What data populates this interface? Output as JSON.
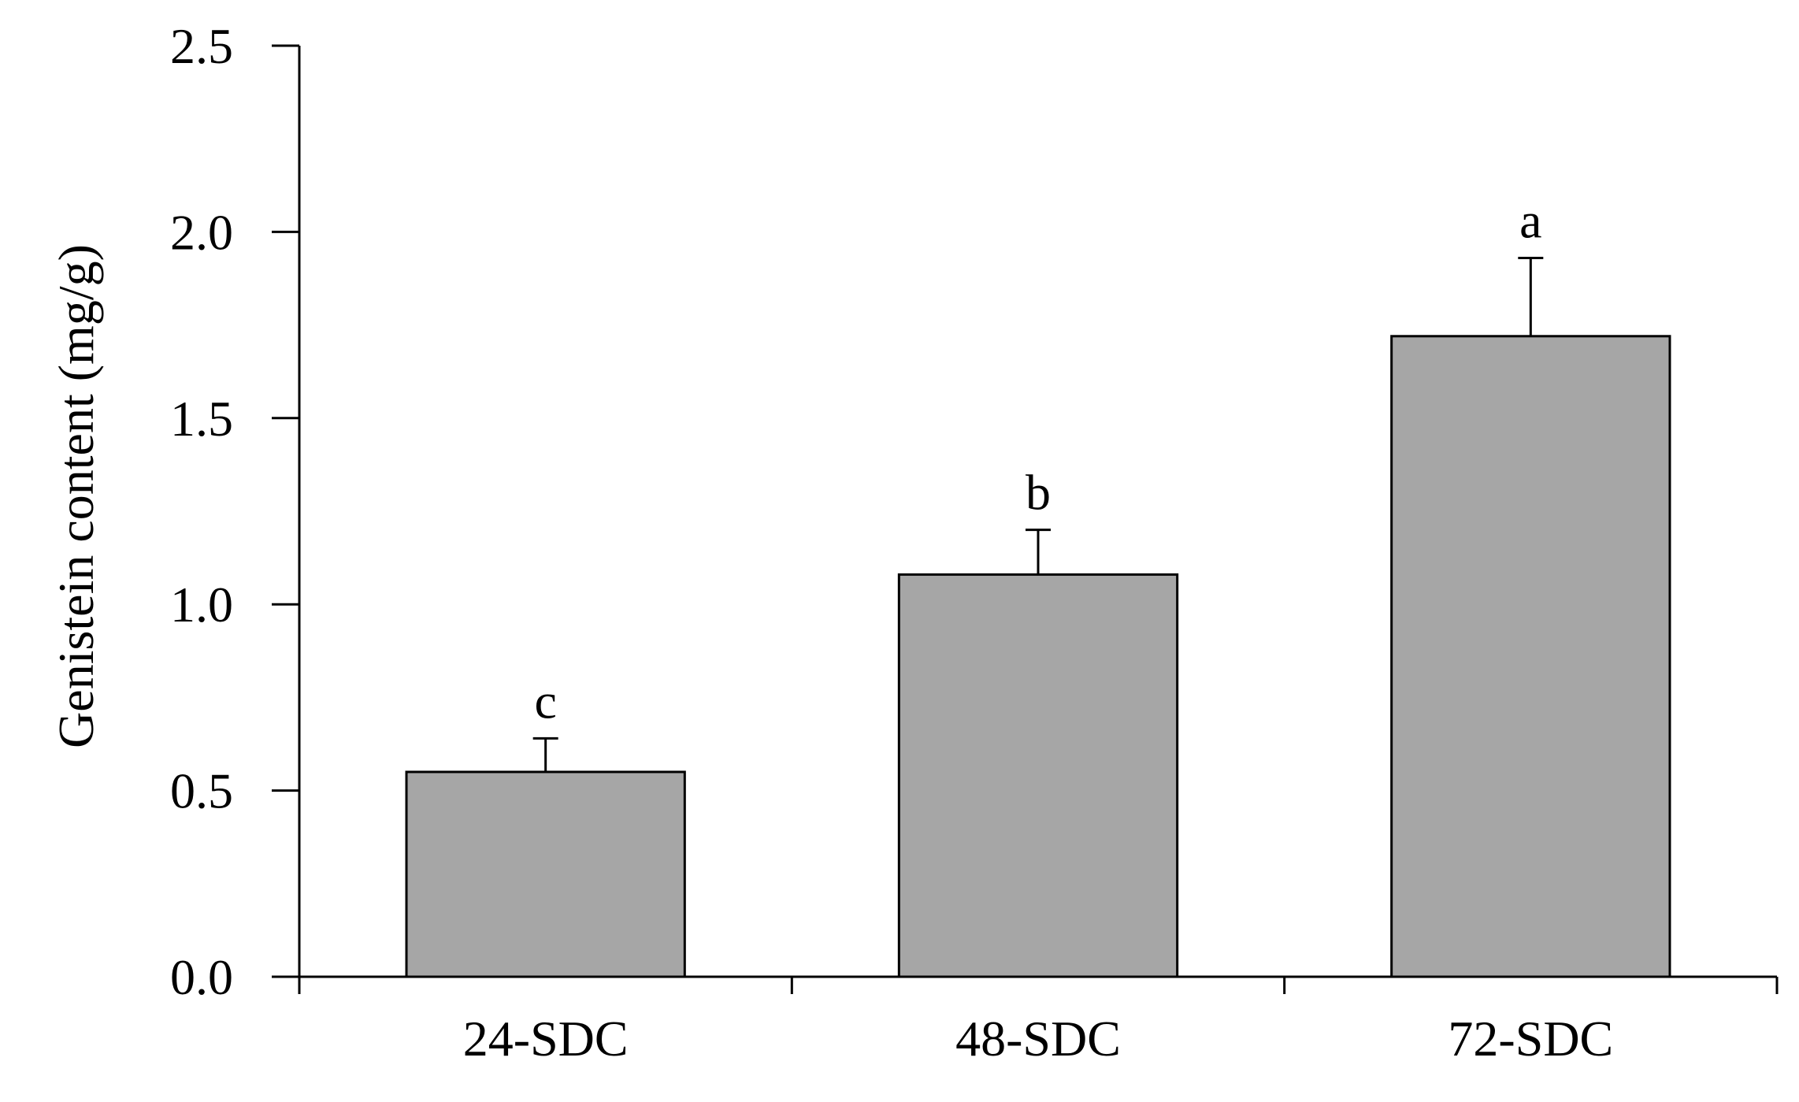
{
  "chart_data": {
    "type": "bar",
    "title": "",
    "xlabel": "",
    "ylabel": "Genistein content (mg/g)",
    "ylim": [
      0,
      2.5
    ],
    "yticks": [
      0.0,
      0.5,
      1.0,
      1.5,
      2.0,
      2.5
    ],
    "ytick_labels": [
      "0.0",
      "0.5",
      "1.0",
      "1.5",
      "2.0",
      "2.5"
    ],
    "categories": [
      "24-SDC",
      "48-SDC",
      "72-SDC"
    ],
    "values": [
      0.55,
      1.08,
      1.72
    ],
    "errors": [
      0.09,
      0.12,
      0.21
    ],
    "significance_letters": [
      "c",
      "b",
      "a"
    ],
    "bar_color": "#a6a6a6",
    "grid": false,
    "legend": "none"
  }
}
